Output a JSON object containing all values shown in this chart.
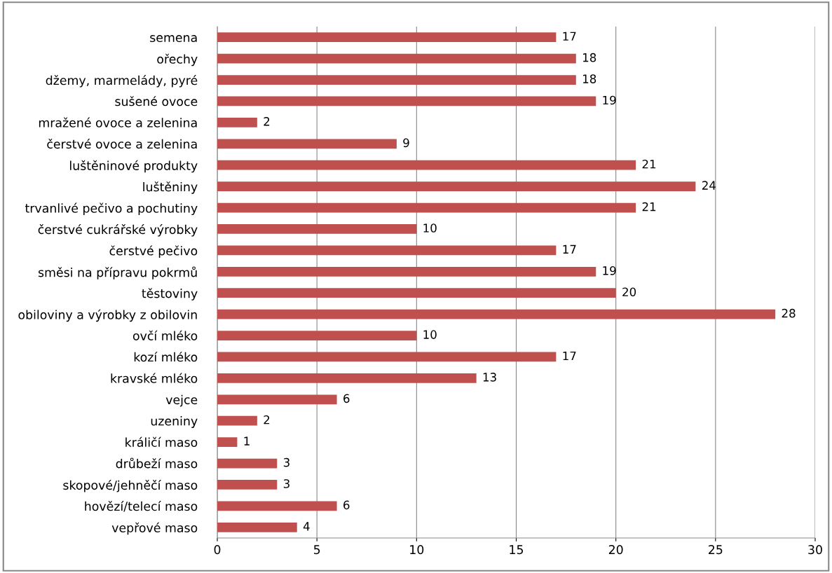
{
  "chart_data": {
    "type": "bar",
    "orientation": "horizontal",
    "categories": [
      "semena",
      "ořechy",
      "džemy, marmelády, pyré",
      "sušené ovoce",
      "mražené ovoce a zelenina",
      "čerstvé ovoce a zelenina",
      "luštěninové produkty",
      "luštěniny",
      "trvanlivé pečivo a pochutiny",
      "čerstvé cukrářské výrobky",
      "čerstvé pečivo",
      "směsi na přípravu pokrmů",
      "těstoviny",
      "obiloviny a výrobky z obilovin",
      "ovčí mléko",
      "kozí mléko",
      "kravské mléko",
      "vejce",
      "uzeniny",
      "králičí maso",
      "drůbeží maso",
      "skopové/jehněčí maso",
      "hovězí/telecí maso",
      "vepřové maso"
    ],
    "values": [
      17,
      18,
      18,
      19,
      2,
      9,
      21,
      24,
      21,
      10,
      17,
      19,
      20,
      28,
      10,
      17,
      13,
      6,
      2,
      1,
      3,
      3,
      6,
      4
    ],
    "color": "#c0504d",
    "xlim": [
      0,
      30
    ],
    "xticks": [
      0,
      5,
      10,
      15,
      20,
      25,
      30
    ],
    "grid": "x",
    "data_labels": true
  }
}
